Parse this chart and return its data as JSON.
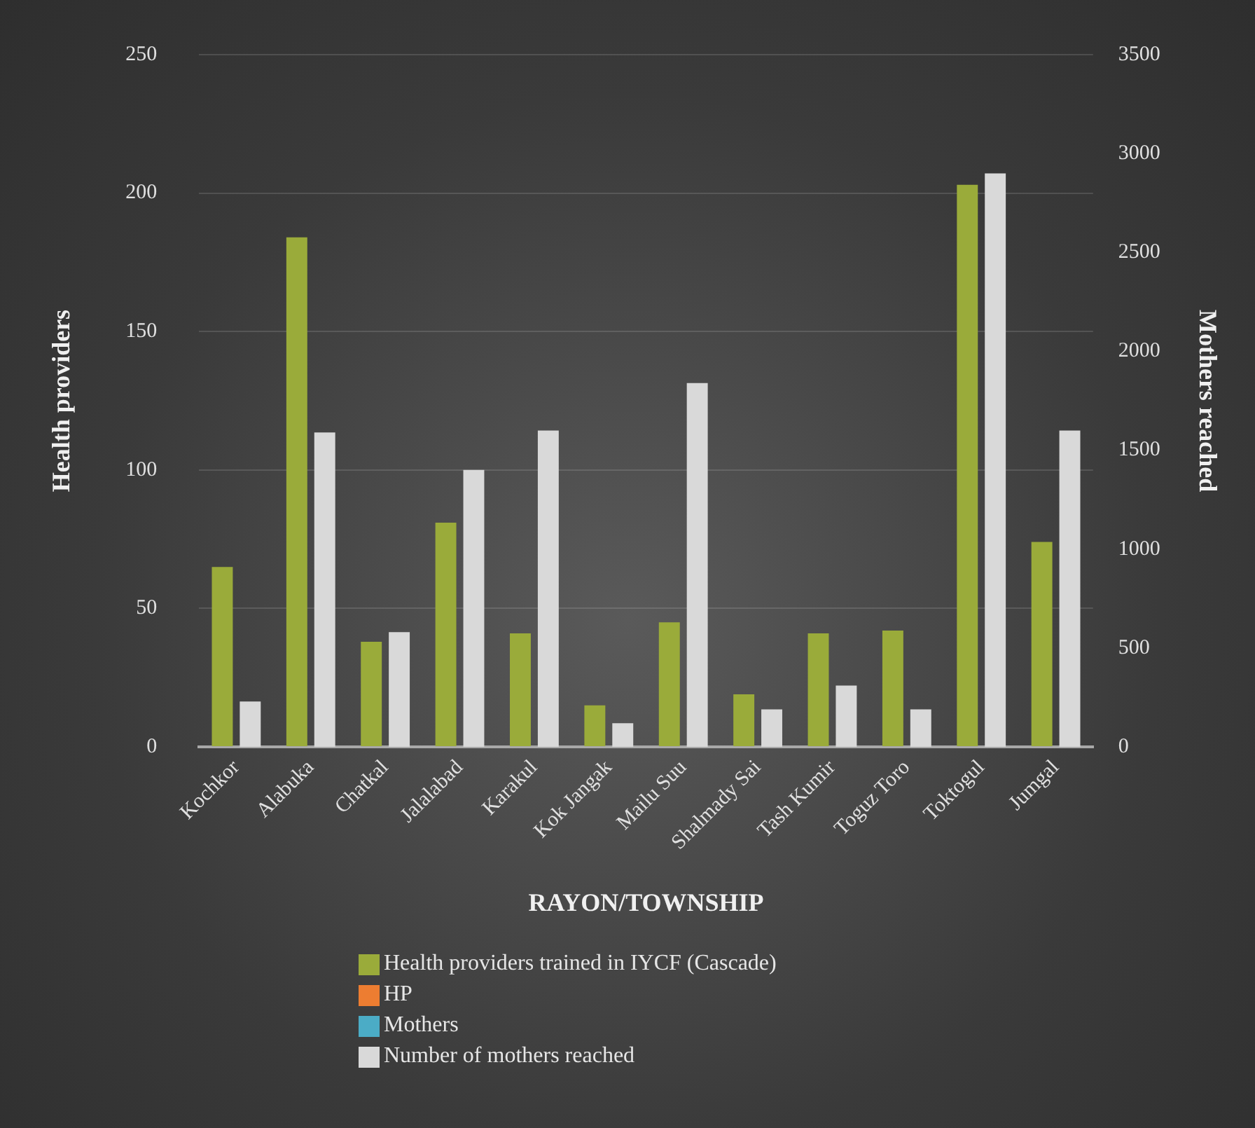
{
  "chart_data": {
    "type": "bar",
    "xlabel": "RAYON/TOWNSHIP",
    "ylabel": "Health providers",
    "y2label": "Mothers reached",
    "categories": [
      "Kochkor",
      "Alabuka",
      "Chatkal",
      "Jalalabad",
      "Karakul",
      "Kok Jangak",
      "Mailu Suu",
      "Shalmady Sai",
      "Tash Kumir",
      "Toguz Toro",
      "Toktogul",
      "Jumgal"
    ],
    "series": [
      {
        "name": "Health providers trained in IYCF (Cascade)",
        "color": "#9aab3a",
        "values": [
          65,
          184,
          38,
          81,
          41,
          15,
          45,
          19,
          41,
          42,
          203,
          74
        ]
      },
      {
        "name": "HP",
        "color": "#ed7d31",
        "values": [
          null,
          null,
          null,
          null,
          null,
          null,
          null,
          null,
          null,
          null,
          null,
          null
        ]
      },
      {
        "name": "Mothers",
        "color": "#4bacc6",
        "axis": "y2",
        "values": [
          null,
          null,
          null,
          null,
          null,
          null,
          null,
          null,
          null,
          null,
          null,
          null
        ]
      },
      {
        "name": "Number of mothers reached",
        "color": "#d9d9d9",
        "axis": "y2",
        "values": [
          230,
          1590,
          580,
          1400,
          1600,
          120,
          1840,
          190,
          310,
          190,
          2900,
          1600
        ]
      }
    ],
    "ylim": [
      0,
      250
    ],
    "yticks": [
      0,
      50,
      100,
      150,
      200,
      250
    ],
    "y2lim": [
      0,
      3500
    ],
    "y2ticks": [
      0,
      500,
      1000,
      1500,
      2000,
      2500,
      3000,
      3500
    ],
    "grid": "y",
    "legend": "bottom"
  }
}
